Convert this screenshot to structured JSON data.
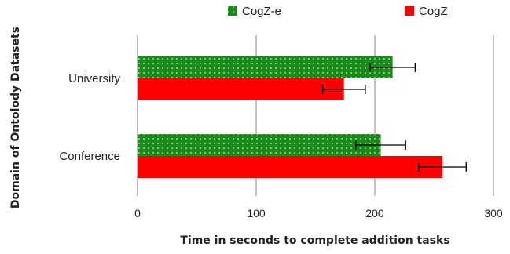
{
  "chart_data": {
    "type": "bar",
    "orientation": "horizontal",
    "categories": [
      "University",
      "Conference"
    ],
    "series": [
      {
        "name": "CogZ-e",
        "values": [
          215,
          205
        ],
        "errors": [
          19,
          21
        ],
        "color": "#1a8a1a",
        "pattern": "dotted"
      },
      {
        "name": "CogZ",
        "values": [
          174,
          257
        ],
        "errors": [
          18,
          20
        ],
        "color": "#ff0000",
        "pattern": "solid"
      }
    ],
    "xlabel": "Time in seconds to complete addition tasks",
    "ylabel": "Domain of Ontolody Datasets",
    "xlim": [
      0,
      300
    ],
    "xticks": [
      "0",
      "100",
      "200",
      "300"
    ],
    "grid": true,
    "legend_position": "top"
  }
}
